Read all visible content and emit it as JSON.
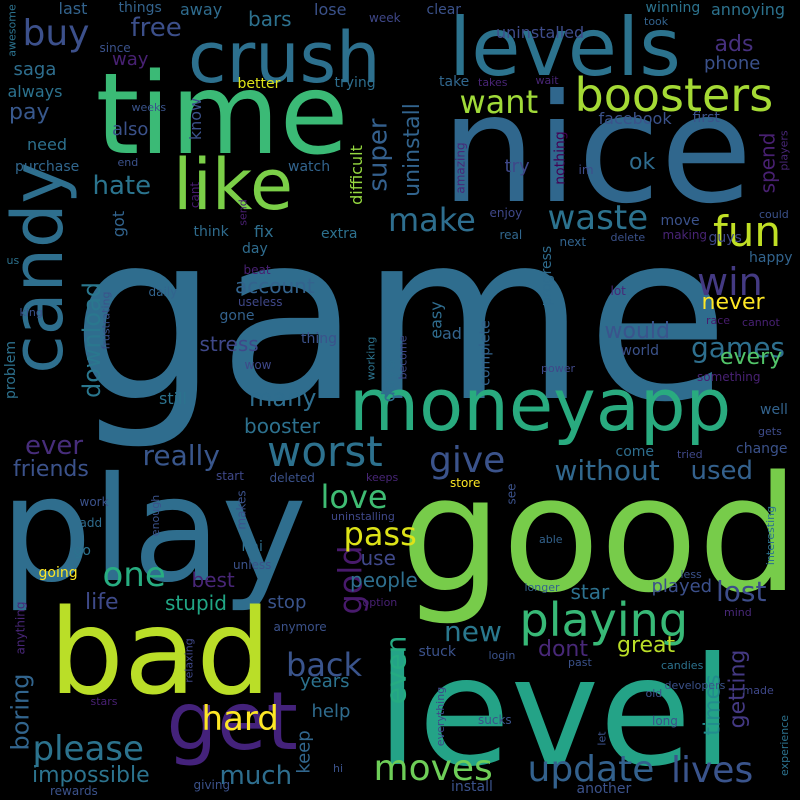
{
  "words": [
    {
      "text": "game",
      "c": "#2f6d8e"
    },
    {
      "text": "nice",
      "c": "#30678d"
    },
    {
      "text": "good",
      "c": "#77cc4a"
    },
    {
      "text": "level",
      "c": "#24a387"
    },
    {
      "text": "play",
      "c": "#2f6e8e"
    },
    {
      "text": "time",
      "c": "#3bba76"
    },
    {
      "text": "bad",
      "c": "#bade28"
    },
    {
      "text": "levels",
      "c": "#2c738e"
    },
    {
      "text": "moneyapp",
      "c": "#29ab7f"
    },
    {
      "text": "candy",
      "c": "#2e6f8e"
    },
    {
      "text": "crush",
      "c": "#2d708e"
    },
    {
      "text": "get",
      "c": "#44227b"
    },
    {
      "text": "like",
      "c": "#7bcf48"
    },
    {
      "text": "boosters",
      "c": "#a5da35"
    },
    {
      "text": "worst",
      "c": "#2d718e"
    },
    {
      "text": "playing",
      "c": "#38b977"
    },
    {
      "text": "update",
      "c": "#33618d"
    },
    {
      "text": "lives",
      "c": "#3a548c"
    },
    {
      "text": "win",
      "c": "#443a83"
    },
    {
      "text": "fun",
      "c": "#c0df25"
    },
    {
      "text": "give",
      "c": "#3b538b"
    },
    {
      "text": "moves",
      "c": "#6ece58"
    },
    {
      "text": "waste",
      "c": "#2c728e"
    },
    {
      "text": "make",
      "c": "#2e6e8e"
    },
    {
      "text": "want",
      "c": "#a0da39"
    },
    {
      "text": "buy",
      "c": "#3c508b"
    },
    {
      "text": "hard",
      "c": "#fde725"
    },
    {
      "text": "please",
      "c": "#2c738e"
    },
    {
      "text": "one",
      "c": "#27ad81"
    },
    {
      "text": "love",
      "c": "#3fbc73"
    },
    {
      "text": "back",
      "c": "#3a548c"
    },
    {
      "text": "gold",
      "c": "#481a6c"
    },
    {
      "text": "pass",
      "c": "#dde318"
    },
    {
      "text": "without",
      "c": "#31688e"
    },
    {
      "text": "really",
      "c": "#39568c"
    },
    {
      "text": "games",
      "c": "#2e6f8e"
    },
    {
      "text": "free",
      "c": "#3c4f8a"
    },
    {
      "text": "even",
      "c": "#25ab82"
    },
    {
      "text": "new",
      "c": "#2a788e"
    },
    {
      "text": "lost",
      "c": "#3d4d8a"
    },
    {
      "text": "hate",
      "c": "#2b748e"
    },
    {
      "text": "download",
      "c": "#2a778e"
    },
    {
      "text": "boring",
      "c": "#32658e"
    },
    {
      "text": "much",
      "c": "#2e6e8e"
    },
    {
      "text": "impossible",
      "c": "#2c738e"
    },
    {
      "text": "ever",
      "c": "#472d7b"
    },
    {
      "text": "friends",
      "c": "#3b528b"
    },
    {
      "text": "super",
      "c": "#34608d"
    },
    {
      "text": "uninstall",
      "c": "#32648e"
    },
    {
      "text": "times",
      "c": "#228c8d"
    },
    {
      "text": "getting",
      "c": "#443983"
    },
    {
      "text": "used",
      "c": "#34618d"
    },
    {
      "text": "many",
      "c": "#2e6d8e"
    },
    {
      "text": "never",
      "c": "#fde725"
    },
    {
      "text": "would",
      "c": "#3a548c"
    },
    {
      "text": "every",
      "c": "#52c569"
    },
    {
      "text": "great",
      "c": "#bade28"
    },
    {
      "text": "dont",
      "c": "#482878"
    },
    {
      "text": "stupid",
      "c": "#21a685"
    },
    {
      "text": "life",
      "c": "#3e4a89"
    },
    {
      "text": "people",
      "c": "#2e6f8e"
    },
    {
      "text": "pay",
      "c": "#38588c"
    },
    {
      "text": "saga",
      "c": "#2e6e8e"
    },
    {
      "text": "ads",
      "c": "#46307e"
    },
    {
      "text": "phone",
      "c": "#3b518b"
    },
    {
      "text": "spend",
      "c": "#482071"
    },
    {
      "text": "booster",
      "c": "#2d718e"
    },
    {
      "text": "account",
      "c": "#33638d"
    },
    {
      "text": "stress",
      "c": "#3f4889"
    },
    {
      "text": "use",
      "c": "#3f4889"
    },
    {
      "text": "ok",
      "c": "#2f6c8e"
    },
    {
      "text": "stop",
      "c": "#3a548c"
    },
    {
      "text": "best",
      "c": "#482677"
    },
    {
      "text": "star",
      "c": "#2d718e"
    },
    {
      "text": "played",
      "c": "#3c508b"
    },
    {
      "text": "years",
      "c": "#2c728e"
    },
    {
      "text": "help",
      "c": "#2f6c8e"
    },
    {
      "text": "keep",
      "c": "#31678e"
    },
    {
      "text": "bars",
      "c": "#2d718e"
    },
    {
      "text": "way",
      "c": "#482173"
    },
    {
      "text": "also",
      "c": "#3b528b"
    },
    {
      "text": "need",
      "c": "#2d718e"
    },
    {
      "text": "always",
      "c": "#2c728e"
    },
    {
      "text": "got",
      "c": "#32648e"
    },
    {
      "text": "days",
      "c": "#2e6e8e"
    },
    {
      "text": "know",
      "c": "#3b528b"
    },
    {
      "text": "try",
      "c": "#3f4889"
    },
    {
      "text": "last",
      "c": "#33638d"
    },
    {
      "text": "away",
      "c": "#2f6c8e"
    },
    {
      "text": "lose",
      "c": "#3b528b"
    },
    {
      "text": "uninstalled",
      "c": "#3e4c8a"
    },
    {
      "text": "annoying",
      "c": "#2c728e"
    },
    {
      "text": "winning",
      "c": "#2c738e"
    },
    {
      "text": "week",
      "c": "#3f4788"
    },
    {
      "text": "clear",
      "c": "#3b528b"
    },
    {
      "text": "things",
      "c": "#33638d"
    },
    {
      "text": "since",
      "c": "#3b528b"
    },
    {
      "text": "better",
      "c": "#dde318"
    },
    {
      "text": "trying",
      "c": "#2e6e8e"
    },
    {
      "text": "take",
      "c": "#31678e"
    },
    {
      "text": "takes",
      "c": "#482575"
    },
    {
      "text": "wait",
      "c": "#482575"
    },
    {
      "text": "took",
      "c": "#33628d"
    },
    {
      "text": "weeks",
      "c": "#3a548c"
    },
    {
      "text": "purchase",
      "c": "#31678e"
    },
    {
      "text": "end",
      "c": "#3b528b"
    },
    {
      "text": "watch",
      "c": "#32648e"
    },
    {
      "text": "facebook",
      "c": "#3b528b"
    },
    {
      "text": "first",
      "c": "#3b528b"
    },
    {
      "text": "players",
      "c": "#482677"
    },
    {
      "text": "im",
      "c": "#3e4c8a"
    },
    {
      "text": "amazing",
      "c": "#482878"
    },
    {
      "text": "nothing",
      "c": "#440154"
    },
    {
      "text": "difficult",
      "c": "#95d840"
    },
    {
      "text": "cant",
      "c": "#481c6e"
    },
    {
      "text": "send",
      "c": "#481f70"
    },
    {
      "text": "fix",
      "c": "#2e6e8e"
    },
    {
      "text": "think",
      "c": "#2f6c8e"
    },
    {
      "text": "extra",
      "c": "#2d718e"
    },
    {
      "text": "enjoy",
      "c": "#3f4889"
    },
    {
      "text": "real",
      "c": "#31678e"
    },
    {
      "text": "next",
      "c": "#32648e"
    },
    {
      "text": "move",
      "c": "#3b528b"
    },
    {
      "text": "delete",
      "c": "#3b528b"
    },
    {
      "text": "making",
      "c": "#482475"
    },
    {
      "text": "could",
      "c": "#3b528b"
    },
    {
      "text": "guys",
      "c": "#3f4889"
    },
    {
      "text": "happy",
      "c": "#32648e"
    },
    {
      "text": "day",
      "c": "#2f6c8e"
    },
    {
      "text": "beat",
      "c": "#482173"
    },
    {
      "text": "us",
      "c": "#2c728e"
    },
    {
      "text": "king",
      "c": "#3b528b"
    },
    {
      "text": "daily",
      "c": "#32648e"
    },
    {
      "text": "useless",
      "c": "#3f4889"
    },
    {
      "text": "gone",
      "c": "#33628d"
    },
    {
      "text": "frustrating",
      "c": "#3b528b"
    },
    {
      "text": "thing",
      "c": "#3b528b"
    },
    {
      "text": "working",
      "c": "#2c738e"
    },
    {
      "text": "become",
      "c": "#3f4889"
    },
    {
      "text": "progress",
      "c": "#2f6c8e"
    },
    {
      "text": "easy",
      "c": "#2f6c8e"
    },
    {
      "text": "ad",
      "c": "#33638d"
    },
    {
      "text": "complete",
      "c": "#33638d"
    },
    {
      "text": "power",
      "c": "#3f4889"
    },
    {
      "text": "lot",
      "c": "#482677"
    },
    {
      "text": "race",
      "c": "#481c6e"
    },
    {
      "text": "cannot",
      "c": "#482173"
    },
    {
      "text": "world",
      "c": "#3b528b"
    },
    {
      "text": "something",
      "c": "#482173"
    },
    {
      "text": "problem",
      "c": "#2d718e"
    },
    {
      "text": "wow",
      "c": "#3f4889"
    },
    {
      "text": "still",
      "c": "#2c728e"
    },
    {
      "text": "well",
      "c": "#33638d"
    },
    {
      "text": "gets",
      "c": "#3e4c8a"
    },
    {
      "text": "change",
      "c": "#3b528b"
    },
    {
      "text": "come",
      "c": "#2e6e8e"
    },
    {
      "text": "tried",
      "c": "#3f4889"
    },
    {
      "text": "deleted",
      "c": "#3b528b"
    },
    {
      "text": "keeps",
      "c": "#482677"
    },
    {
      "text": "start",
      "c": "#3f4889"
    },
    {
      "text": "makes",
      "c": "#3b528b"
    },
    {
      "text": "store",
      "c": "#fde725"
    },
    {
      "text": "see",
      "c": "#3b528b"
    },
    {
      "text": "interesting",
      "c": "#2c728e"
    },
    {
      "text": "work",
      "c": "#3b528b"
    },
    {
      "text": "add",
      "c": "#2f6c8e"
    },
    {
      "text": "enough",
      "c": "#3b528b"
    },
    {
      "text": "hai",
      "c": "#2e6e8e"
    },
    {
      "text": "uninstalling",
      "c": "#3f4889"
    },
    {
      "text": "unless",
      "c": "#3b528b"
    },
    {
      "text": "able",
      "c": "#33628d"
    },
    {
      "text": "go",
      "c": "#2c728e"
    },
    {
      "text": "going",
      "c": "#fde725"
    },
    {
      "text": "longer",
      "c": "#33638d"
    },
    {
      "text": "less",
      "c": "#3b528b"
    },
    {
      "text": "option",
      "c": "#482173"
    },
    {
      "text": "anymore",
      "c": "#3b528b"
    },
    {
      "text": "mind",
      "c": "#482878"
    },
    {
      "text": "relaxing",
      "c": "#3f4889"
    },
    {
      "text": "stuck",
      "c": "#3b528b"
    },
    {
      "text": "login",
      "c": "#3b528b"
    },
    {
      "text": "past",
      "c": "#3b528b"
    },
    {
      "text": "candies",
      "c": "#2c728e"
    },
    {
      "text": "developers",
      "c": "#3b528b"
    },
    {
      "text": "made",
      "c": "#3f4889"
    },
    {
      "text": "old",
      "c": "#3b528b"
    },
    {
      "text": "anything",
      "c": "#482677"
    },
    {
      "text": "stars",
      "c": "#482173"
    },
    {
      "text": "everything",
      "c": "#3f4889"
    },
    {
      "text": "sucks",
      "c": "#3b528b"
    },
    {
      "text": "let",
      "c": "#3b528b"
    },
    {
      "text": "long",
      "c": "#3b528b"
    },
    {
      "text": "experience",
      "c": "#2c728e"
    },
    {
      "text": "hi",
      "c": "#3b528b"
    },
    {
      "text": "giving",
      "c": "#3b528b"
    },
    {
      "text": "install",
      "c": "#3b528b"
    },
    {
      "text": "another",
      "c": "#3b528b"
    },
    {
      "text": "rewards",
      "c": "#3b528b"
    },
    {
      "text": "awesome",
      "c": "#2c728e"
    }
  ]
}
